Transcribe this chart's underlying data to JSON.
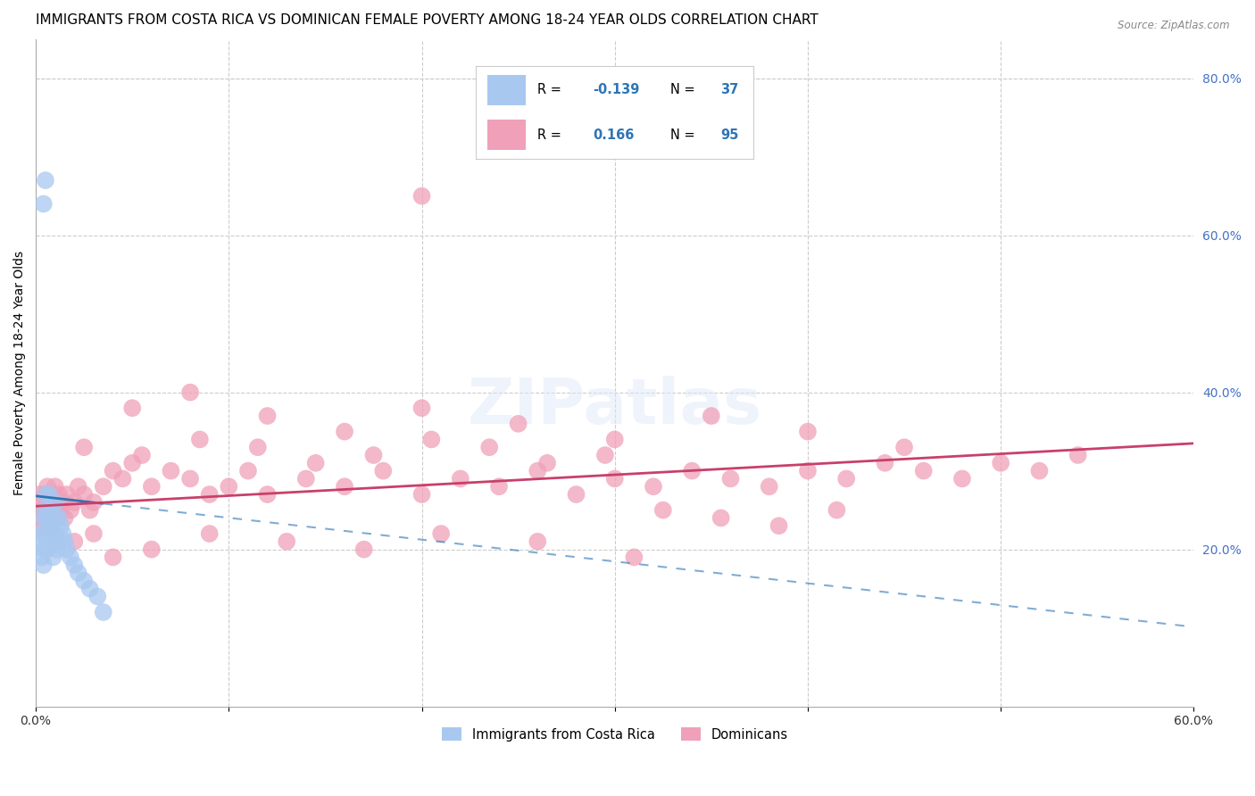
{
  "title": "IMMIGRANTS FROM COSTA RICA VS DOMINICAN FEMALE POVERTY AMONG 18-24 YEAR OLDS CORRELATION CHART",
  "source": "Source: ZipAtlas.com",
  "ylabel": "Female Poverty Among 18-24 Year Olds",
  "xlim": [
    0.0,
    0.6
  ],
  "ylim": [
    0.0,
    0.85
  ],
  "yticks_right": [
    0.2,
    0.4,
    0.6,
    0.8
  ],
  "yticklabels_right": [
    "20.0%",
    "40.0%",
    "60.0%",
    "80.0%"
  ],
  "legend_label1": "Immigrants from Costa Rica",
  "legend_label2": "Dominicans",
  "color_blue": "#A8C8F0",
  "color_pink": "#F0A0B8",
  "trendline_blue": "#2E75B6",
  "trendline_pink": "#C8406A",
  "background_color": "#FFFFFF",
  "title_fontsize": 11,
  "axis_label_fontsize": 10,
  "tick_fontsize": 10,
  "legend_r1_val": "-0.139",
  "legend_n1_val": "37",
  "legend_r2_val": "0.166",
  "legend_n2_val": "95",
  "blue_x": [
    0.002,
    0.003,
    0.003,
    0.004,
    0.004,
    0.004,
    0.005,
    0.005,
    0.005,
    0.006,
    0.006,
    0.006,
    0.007,
    0.007,
    0.008,
    0.008,
    0.009,
    0.009,
    0.01,
    0.01,
    0.01,
    0.011,
    0.012,
    0.012,
    0.013,
    0.014,
    0.015,
    0.016,
    0.018,
    0.02,
    0.022,
    0.025,
    0.028,
    0.032,
    0.035,
    0.004,
    0.005
  ],
  "blue_y": [
    0.21,
    0.19,
    0.22,
    0.24,
    0.2,
    0.18,
    0.22,
    0.25,
    0.27,
    0.22,
    0.24,
    0.2,
    0.23,
    0.27,
    0.21,
    0.25,
    0.22,
    0.19,
    0.24,
    0.26,
    0.22,
    0.2,
    0.24,
    0.21,
    0.23,
    0.22,
    0.21,
    0.2,
    0.19,
    0.18,
    0.17,
    0.16,
    0.15,
    0.14,
    0.12,
    0.64,
    0.67
  ],
  "pink_x": [
    0.002,
    0.003,
    0.003,
    0.004,
    0.004,
    0.005,
    0.005,
    0.006,
    0.006,
    0.007,
    0.007,
    0.008,
    0.008,
    0.009,
    0.01,
    0.01,
    0.011,
    0.012,
    0.013,
    0.014,
    0.015,
    0.016,
    0.018,
    0.02,
    0.022,
    0.025,
    0.028,
    0.03,
    0.035,
    0.04,
    0.045,
    0.05,
    0.06,
    0.07,
    0.08,
    0.09,
    0.1,
    0.11,
    0.12,
    0.14,
    0.16,
    0.18,
    0.2,
    0.22,
    0.24,
    0.26,
    0.28,
    0.3,
    0.32,
    0.34,
    0.36,
    0.38,
    0.4,
    0.42,
    0.44,
    0.46,
    0.48,
    0.5,
    0.52,
    0.54,
    0.05,
    0.08,
    0.12,
    0.16,
    0.2,
    0.25,
    0.3,
    0.35,
    0.4,
    0.45,
    0.02,
    0.03,
    0.04,
    0.06,
    0.09,
    0.13,
    0.17,
    0.21,
    0.26,
    0.31,
    0.025,
    0.055,
    0.085,
    0.115,
    0.145,
    0.175,
    0.205,
    0.235,
    0.265,
    0.295,
    0.325,
    0.355,
    0.385,
    0.415,
    0.2
  ],
  "pink_y": [
    0.27,
    0.25,
    0.24,
    0.26,
    0.23,
    0.25,
    0.27,
    0.26,
    0.28,
    0.25,
    0.24,
    0.27,
    0.23,
    0.26,
    0.28,
    0.25,
    0.24,
    0.27,
    0.25,
    0.26,
    0.24,
    0.27,
    0.25,
    0.26,
    0.28,
    0.27,
    0.25,
    0.26,
    0.28,
    0.3,
    0.29,
    0.31,
    0.28,
    0.3,
    0.29,
    0.27,
    0.28,
    0.3,
    0.27,
    0.29,
    0.28,
    0.3,
    0.27,
    0.29,
    0.28,
    0.3,
    0.27,
    0.29,
    0.28,
    0.3,
    0.29,
    0.28,
    0.3,
    0.29,
    0.31,
    0.3,
    0.29,
    0.31,
    0.3,
    0.32,
    0.38,
    0.4,
    0.37,
    0.35,
    0.38,
    0.36,
    0.34,
    0.37,
    0.35,
    0.33,
    0.21,
    0.22,
    0.19,
    0.2,
    0.22,
    0.21,
    0.2,
    0.22,
    0.21,
    0.19,
    0.33,
    0.32,
    0.34,
    0.33,
    0.31,
    0.32,
    0.34,
    0.33,
    0.31,
    0.32,
    0.25,
    0.24,
    0.23,
    0.25,
    0.65
  ]
}
